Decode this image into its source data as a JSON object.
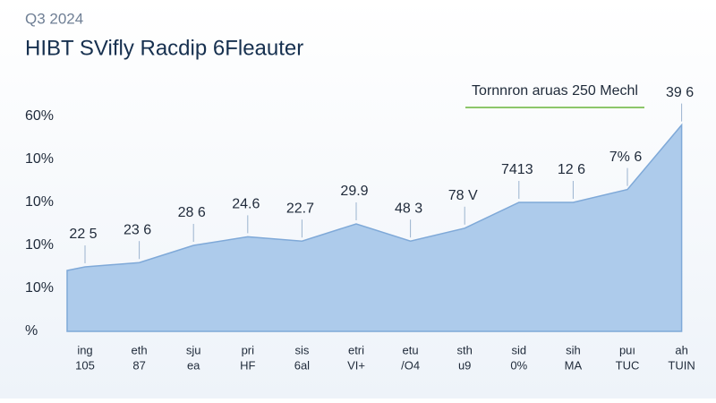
{
  "chart_data": {
    "type": "area",
    "subtitle": "Q3 2024",
    "title": "HIBT SVifly Racdip 6Fleauter",
    "annotation": "Tornnron aruas 250 Mechl",
    "y_labels": [
      "%",
      "10%",
      "10%",
      "10%",
      "10%",
      "60%"
    ],
    "ylim": [
      0,
      5
    ],
    "categories": [
      [
        "ing",
        "105"
      ],
      [
        "eth",
        "87"
      ],
      [
        "sju",
        "ea"
      ],
      [
        "pri",
        "HF"
      ],
      [
        "sis",
        "6al"
      ],
      [
        "etri",
        "VI+"
      ],
      [
        "etu",
        "/O4"
      ],
      [
        "sth",
        "u9"
      ],
      [
        "sid",
        "0%"
      ],
      [
        "sih",
        "MA"
      ],
      [
        "puı",
        "TUC"
      ],
      [
        "ah",
        "TUIN"
      ]
    ],
    "values": [
      1.5,
      1.6,
      2.0,
      2.2,
      2.1,
      2.5,
      2.1,
      2.4,
      3.0,
      3.0,
      3.3,
      4.8
    ],
    "point_notes": [
      "22 5",
      "23 6",
      "28 6",
      "24.6",
      "22.7",
      "29.9",
      "48 3",
      "78 V",
      "7413",
      "12 6",
      "7% 6",
      "39 6"
    ],
    "color": "#a9c8ea"
  }
}
